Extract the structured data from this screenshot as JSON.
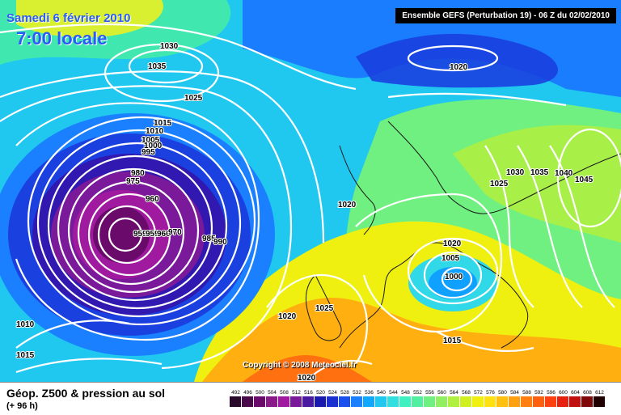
{
  "header": {
    "date": "Samedi 6 février 2010",
    "time": "7:00 locale",
    "run_info": "Ensemble GEFS (Perturbation 19)  -  06 Z du 02/02/2010"
  },
  "copyright": "Copyright © 2008 Meteociel.fr",
  "footer": {
    "title": "Géop. Z500 & pression au sol",
    "subtitle": "(+ 96 h)"
  },
  "legend": {
    "values": [
      "492",
      "496",
      "500",
      "504",
      "508",
      "512",
      "516",
      "520",
      "524",
      "528",
      "532",
      "536",
      "540",
      "544",
      "548",
      "552",
      "556",
      "560",
      "564",
      "568",
      "572",
      "576",
      "580",
      "584",
      "588",
      "592",
      "596",
      "600",
      "604",
      "608",
      "612"
    ],
    "colors": [
      "#2a0a2a",
      "#4a0a4a",
      "#6a0a6a",
      "#8a1a8a",
      "#a01aa0",
      "#7a1a9a",
      "#4a1aa0",
      "#1a1ab0",
      "#1a30d0",
      "#1a50f0",
      "#1a80ff",
      "#10a8ff",
      "#20c8f0",
      "#30e0e0",
      "#40f0c0",
      "#50f0a0",
      "#70f080",
      "#90f060",
      "#b0f040",
      "#d0f020",
      "#f0f010",
      "#ffe010",
      "#ffc010",
      "#ffa010",
      "#ff8010",
      "#ff6010",
      "#ff4010",
      "#e82010",
      "#c01010",
      "#800808",
      "#200000"
    ]
  },
  "isobars": [
    "1030",
    "1035",
    "1025",
    "1015",
    "1010",
    "1005",
    "1000",
    "995",
    "980",
    "975",
    "960",
    "959",
    "959",
    "966",
    "970",
    "985",
    "990",
    "1020",
    "1010",
    "1015",
    "1020",
    "1005",
    "1000",
    "1030",
    "1035",
    "1040",
    "1045",
    "1025",
    "1020",
    "1025",
    "1020",
    "1015",
    "1020"
  ]
}
